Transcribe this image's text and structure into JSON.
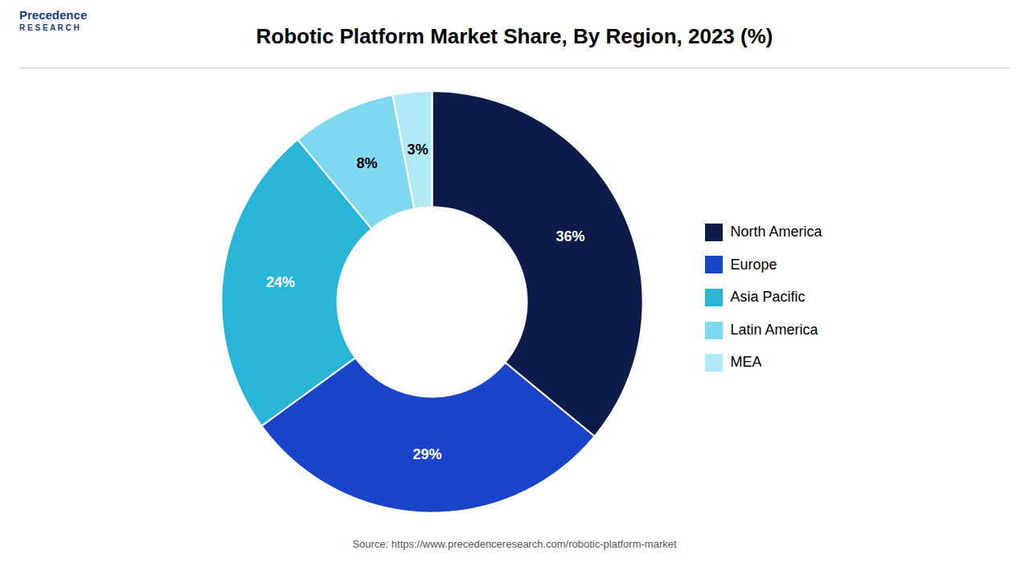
{
  "chart_data": {
    "type": "pie",
    "title": "Robotic Platform Market Share, By Region, 2023 (%)",
    "categories": [
      "North America",
      "Europe",
      "Asia Pacific",
      "Latin America",
      "MEA"
    ],
    "values": [
      36,
      29,
      24,
      8,
      3
    ],
    "value_labels": [
      "36%",
      "29%",
      "24%",
      "8%",
      "3%"
    ],
    "colors": [
      "#0d1b4b",
      "#1a44c9",
      "#29b5d8",
      "#7ed8ef",
      "#b0e8f5"
    ],
    "data_labels": true,
    "legend": "right",
    "caption": "Source: https://www.precedenceresearch.com/robotic-platform-market",
    "annotations": [
      "Precedence",
      "R E S E A R C H"
    ]
  }
}
